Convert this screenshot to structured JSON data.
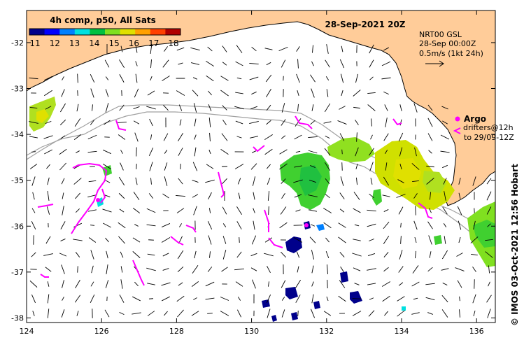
{
  "title": "28-Sep-2021 20Z",
  "colorbar": {
    "title": "4h comp, p50, All Sats",
    "ticks": [
      "11",
      "12",
      "13",
      "14",
      "15",
      "16",
      "17",
      "18"
    ],
    "colors": [
      "#00008b",
      "#0000ff",
      "#0080ff",
      "#00e0e0",
      "#00c040",
      "#80e020",
      "#e0e000",
      "#ffa000",
      "#ff4000",
      "#b00000"
    ]
  },
  "current_legend": {
    "model": "NRT00 GSL",
    "time": "28-Sep 00:00Z",
    "scale": "0.5m/s (1kt 24h)"
  },
  "argo_legend": {
    "label": "Argo",
    "drifters_line1": "drifters@12h",
    "drifters_line2": "to 29/09-12Z",
    "argo_color": "#ff00ff",
    "drifter_color": "#ff00ff"
  },
  "x_axis": {
    "lon_range": [
      124,
      136.5
    ],
    "ticks": [
      "124",
      "126",
      "128",
      "130",
      "132",
      "134",
      "136"
    ]
  },
  "y_axis": {
    "lat_range": [
      -38.1,
      -31.3
    ],
    "ticks": [
      "-32",
      "-33",
      "-34",
      "-35",
      "-36",
      "-37",
      "-38"
    ]
  },
  "footer": "© IMOS 03-Oct-2021 12:56 Hobart",
  "colors": {
    "land": "#ffcc99",
    "coastline": "#000000",
    "isobath": "#a0a0a0",
    "background": "#ffffff"
  }
}
